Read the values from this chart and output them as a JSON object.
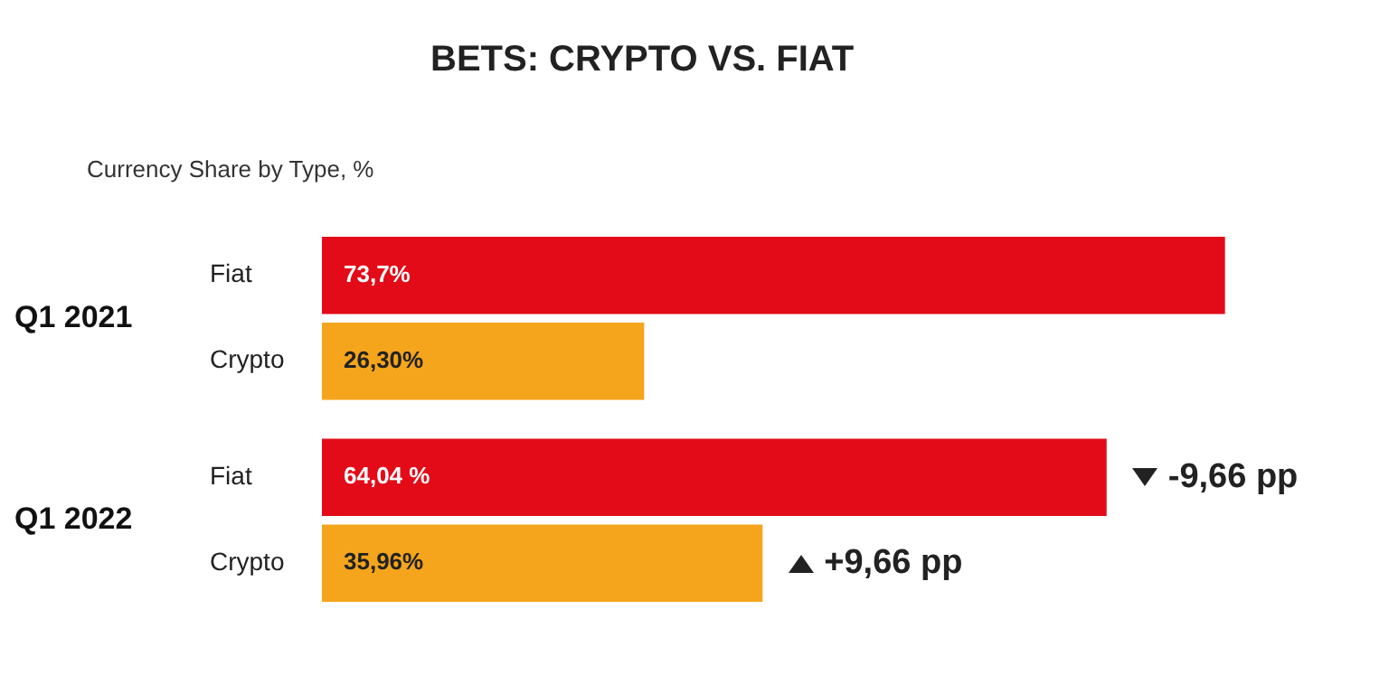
{
  "chart_data": {
    "type": "bar",
    "orientation": "horizontal",
    "title": "BETS: CRYPTO VS. FIAT",
    "subtitle": "Currency Share by Type, %",
    "categories": [
      "Q1 2021",
      "Q1 2022"
    ],
    "series": [
      {
        "name": "Fiat",
        "color": "#e30b17",
        "values": [
          73.7,
          64.04
        ],
        "value_labels": [
          "73,7%",
          "64,04 %"
        ]
      },
      {
        "name": "Crypto",
        "color": "#f5a51c",
        "values": [
          26.3,
          35.96
        ],
        "value_labels": [
          "26,30%",
          "35,96%"
        ]
      }
    ],
    "annotations": [
      {
        "text": "-9,66 pp",
        "x": 64.04,
        "y": "Q1 2022"
      },
      {
        "text": "+9,66 pp",
        "x": 35.96,
        "y": "Q1 2022"
      }
    ],
    "legend": false,
    "grid": false,
    "tick_labels": "y"
  }
}
